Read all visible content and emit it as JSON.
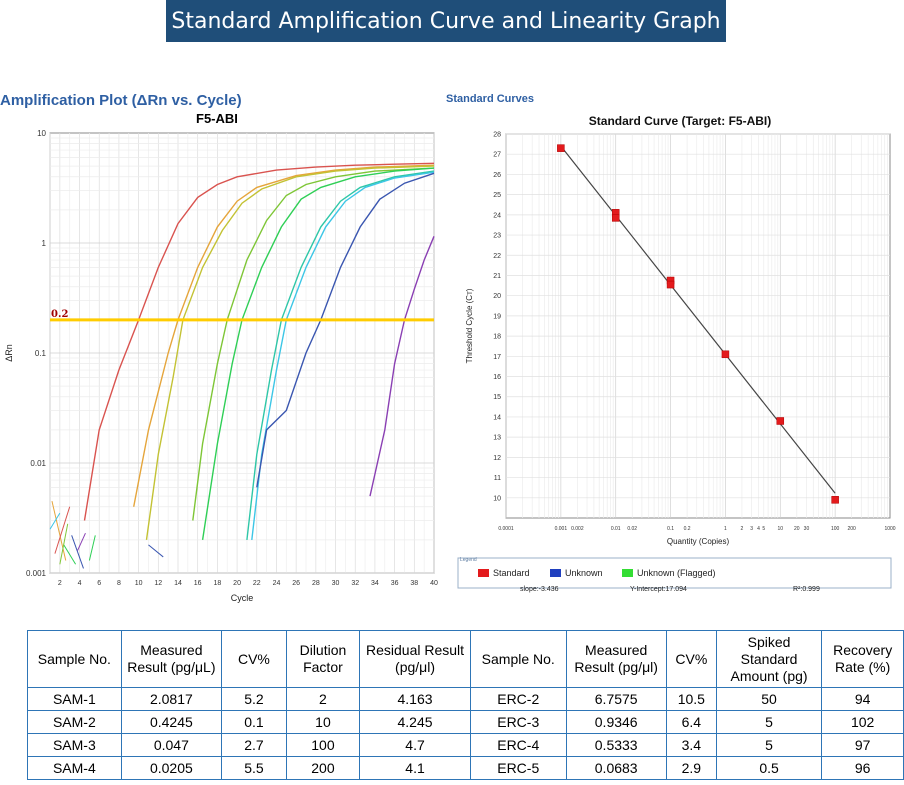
{
  "banner": "Standard Amplification Curve and Linearity Graph",
  "amp": {
    "heading": "Amplification Plot (ΔRn vs. Cycle)",
    "subtitle": "F5-ABI",
    "ylabel": "ΔRn",
    "xlabel": "Cycle",
    "threshold_label": "0.2"
  },
  "std": {
    "heading": "Standard Curves",
    "title": "Standard Curve (Target: F5-ABI)",
    "ylabel": "Threshold Cycle (Cᴛ)",
    "xlabel": "Quantity (Copies)",
    "legend_title": "Legend",
    "legend": [
      {
        "label": "Standard",
        "color": "#e31a1c"
      },
      {
        "label": "Unknown",
        "color": "#1f3fbf"
      },
      {
        "label": "Unknown (Flagged)",
        "color": "#33dd33"
      }
    ],
    "slope": "slope:-3.436",
    "intercept": "Y-Intercept:17.094",
    "r2": "R²:0.999"
  },
  "chart_data": [
    {
      "type": "line",
      "title": "F5-ABI",
      "xlabel": "Cycle",
      "ylabel": "ΔRn",
      "y_scale": "log",
      "xlim": [
        1,
        40
      ],
      "ylim": [
        0.001,
        10
      ],
      "x_ticks": [
        2,
        4,
        6,
        8,
        10,
        12,
        14,
        16,
        18,
        20,
        22,
        24,
        26,
        28,
        30,
        32,
        34,
        36,
        38,
        40
      ],
      "y_ticks": [
        "0.001",
        "0.01",
        "0.1",
        "1",
        "10"
      ],
      "threshold": 0.2,
      "grid": true,
      "series": [
        {
          "color": "#d9534f",
          "x": [
            4.5,
            6,
            8,
            10,
            12,
            14,
            16,
            18,
            20,
            24,
            28,
            32,
            36,
            40
          ],
          "y": [
            0.003,
            0.02,
            0.07,
            0.2,
            0.6,
            1.5,
            2.6,
            3.4,
            4,
            4.6,
            4.9,
            5.1,
            5.2,
            5.3
          ]
        },
        {
          "color": "#e5a53b",
          "x": [
            9.5,
            11,
            13,
            14,
            16,
            18,
            20,
            22,
            26,
            30,
            34,
            40
          ],
          "y": [
            0.004,
            0.02,
            0.1,
            0.2,
            0.6,
            1.4,
            2.4,
            3.2,
            4.1,
            4.6,
            4.9,
            5.1
          ]
        },
        {
          "color": "#c3c234",
          "x": [
            10.8,
            12,
            13.5,
            14.5,
            16.5,
            18.5,
            20.5,
            22.5,
            26,
            30,
            34,
            40
          ],
          "y": [
            0.002,
            0.012,
            0.06,
            0.2,
            0.6,
            1.3,
            2.3,
            3.1,
            4,
            4.5,
            4.8,
            5
          ]
        },
        {
          "color": "#7ec636",
          "x": [
            15.5,
            16.5,
            18,
            19,
            21,
            23,
            25,
            27,
            30,
            34,
            40
          ],
          "y": [
            0.003,
            0.015,
            0.08,
            0.2,
            0.7,
            1.6,
            2.7,
            3.4,
            4,
            4.5,
            4.8
          ]
        },
        {
          "color": "#2fcf56",
          "x": [
            16.5,
            18,
            19.5,
            20.5,
            22.5,
            24.5,
            26.5,
            28.5,
            32,
            36,
            40
          ],
          "y": [
            0.002,
            0.015,
            0.08,
            0.2,
            0.6,
            1.4,
            2.5,
            3.2,
            4,
            4.5,
            4.8
          ]
        },
        {
          "color": "#2ec7a8",
          "x": [
            21,
            22,
            23.5,
            24.5,
            26.5,
            28.5,
            30.5,
            32.5,
            36,
            40
          ],
          "y": [
            0.002,
            0.012,
            0.07,
            0.2,
            0.6,
            1.4,
            2.4,
            3.2,
            4,
            4.5
          ]
        },
        {
          "color": "#3cc6e6",
          "x": [
            21.5,
            22.5,
            24,
            25,
            27,
            29,
            31,
            33,
            36,
            40
          ],
          "y": [
            0.002,
            0.012,
            0.07,
            0.2,
            0.6,
            1.4,
            2.4,
            3.2,
            3.9,
            4.4
          ]
        },
        {
          "color": "#3a56b0",
          "x": [
            22,
            23,
            25,
            27,
            28.5,
            30.5,
            32.5,
            34.5,
            37,
            40
          ],
          "y": [
            0.006,
            0.02,
            0.03,
            0.1,
            0.2,
            0.6,
            1.4,
            2.5,
            3.5,
            4.3
          ]
        },
        {
          "color": "#8a3fb3",
          "x": [
            33.5,
            35,
            36,
            37,
            38,
            39,
            40
          ],
          "y": [
            0.005,
            0.02,
            0.08,
            0.2,
            0.38,
            0.7,
            1.15
          ]
        }
      ]
    },
    {
      "type": "scatter",
      "title": "Standard Curve (Target: F5-ABI)",
      "xlabel": "Quantity (Copies)",
      "ylabel": "Threshold Cycle (Cᴛ)",
      "x_scale": "log",
      "xlim": [
        0.0001,
        1000
      ],
      "ylim": [
        9,
        28
      ],
      "x_ticks": [
        "0.0001",
        "0.001",
        "0.002",
        "0.01",
        "0.02",
        "0.1",
        "0.2",
        "1",
        "2",
        "3",
        "4",
        "5",
        "10",
        "20",
        "30",
        "100",
        "200",
        "1000"
      ],
      "y_ticks": [
        10,
        11,
        12,
        13,
        14,
        15,
        16,
        17,
        18,
        19,
        20,
        21,
        22,
        23,
        24,
        25,
        26,
        27,
        28
      ],
      "points": [
        {
          "x": 0.001,
          "y": 27.3
        },
        {
          "x": 0.01,
          "y": 24.1
        },
        {
          "x": 0.01,
          "y": 23.85
        },
        {
          "x": 0.1,
          "y": 20.75
        },
        {
          "x": 0.1,
          "y": 20.55
        },
        {
          "x": 1,
          "y": 17.1
        },
        {
          "x": 10,
          "y": 13.8
        },
        {
          "x": 100,
          "y": 9.9
        }
      ],
      "fit": {
        "slope": -3.436,
        "intercept": 17.094,
        "r2": 0.999
      },
      "grid": true,
      "legend_position": "bottom"
    }
  ],
  "table": {
    "headers": [
      "Sample No.",
      "Measured Result (pg/μL)",
      "CV%",
      "Dilution Factor",
      "Residual Result  (pg/μl)",
      "Sample No.",
      "Measured Result (pg/μl)",
      "CV%",
      "Spiked Standard Amount (pg)",
      "Recovery Rate (%)"
    ],
    "rows": [
      [
        "SAM-1",
        "2.0817",
        "5.2",
        "2",
        "4.163",
        "ERC-2",
        "6.7575",
        "10.5",
        "50",
        "94"
      ],
      [
        "SAM-2",
        "0.4245",
        "0.1",
        "10",
        "4.245",
        "ERC-3",
        "0.9346",
        "6.4",
        "5",
        "102"
      ],
      [
        "SAM-3",
        "0.047",
        "2.7",
        "100",
        "4.7",
        "ERC-4",
        "0.5333",
        "3.4",
        "5",
        "97"
      ],
      [
        "SAM-4",
        "0.0205",
        "5.5",
        "200",
        "4.1",
        "ERC-5",
        "0.0683",
        "2.9",
        "0.5",
        "96"
      ]
    ]
  }
}
